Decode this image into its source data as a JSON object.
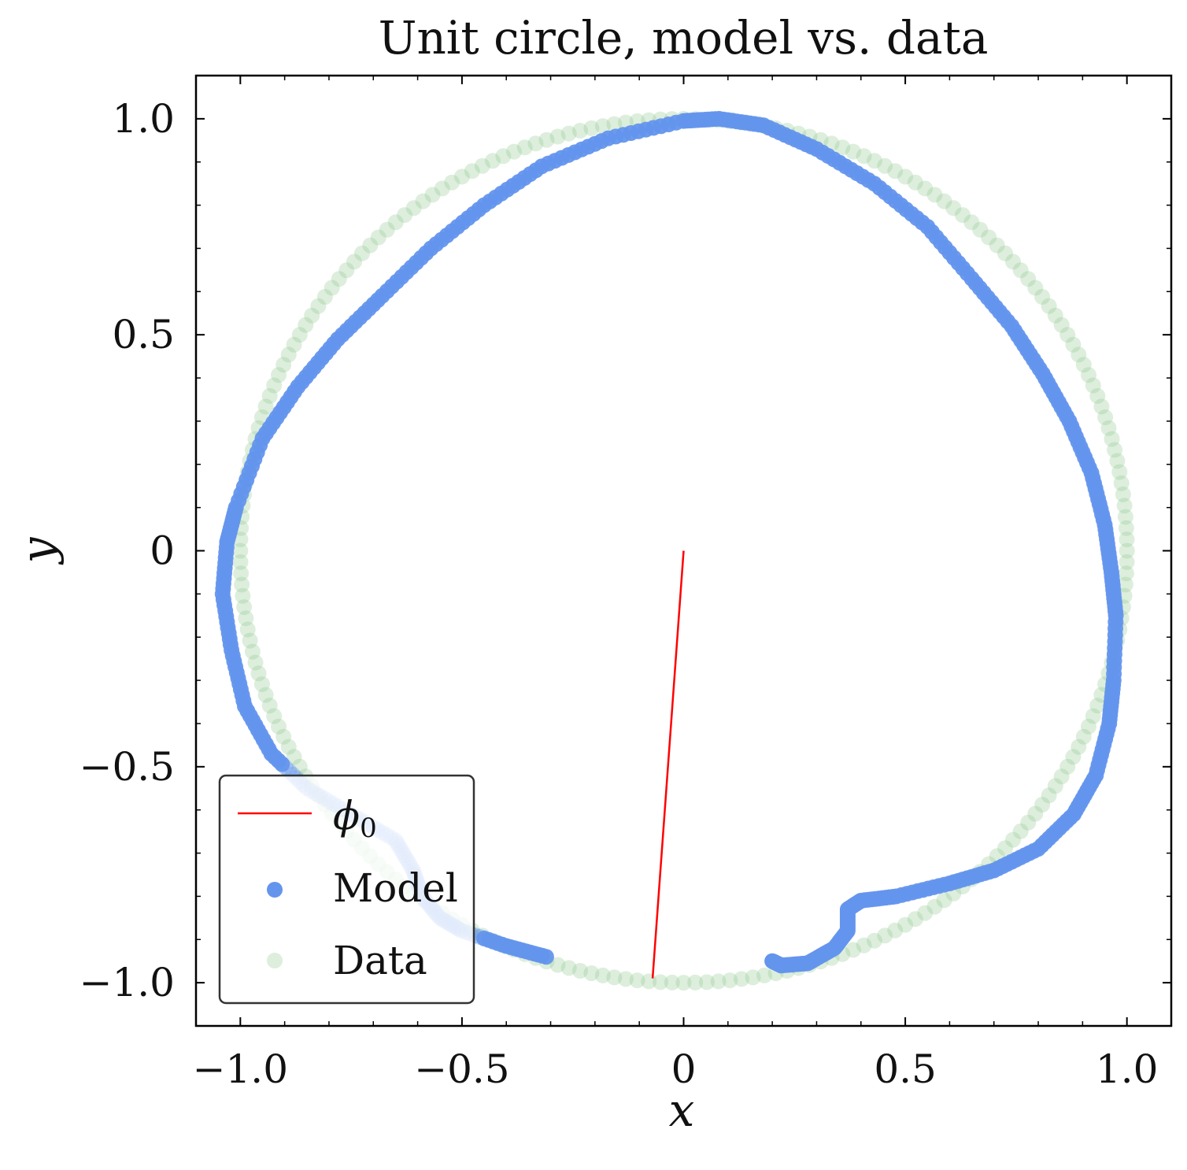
{
  "chart_data": {
    "type": "scatter",
    "title": "Unit circle, model vs. data",
    "xlabel": "x",
    "ylabel": "y",
    "xlim": [
      -1.1,
      1.1
    ],
    "ylim": [
      -1.1,
      1.1
    ],
    "xticks": [
      {
        "value": -1.0,
        "label": "−1.0"
      },
      {
        "value": -0.5,
        "label": "−0.5"
      },
      {
        "value": 0,
        "label": "0"
      },
      {
        "value": 0.5,
        "label": "0.5"
      },
      {
        "value": 1.0,
        "label": "1.0"
      }
    ],
    "yticks": [
      {
        "value": 1.0,
        "label": "1.0"
      },
      {
        "value": 0.5,
        "label": "0.5"
      },
      {
        "value": 0,
        "label": "0"
      },
      {
        "value": -0.5,
        "label": "−0.5"
      },
      {
        "value": -1.0,
        "label": "−1.0"
      }
    ],
    "grid": false,
    "legend": {
      "placement": "lower-left",
      "entries": [
        {
          "label": "ϕ",
          "subscript": "0",
          "kind": "line",
          "color": "#ff0000"
        },
        {
          "label": "Model",
          "kind": "marker",
          "color": "#6495ed"
        },
        {
          "label": "Data",
          "kind": "marker",
          "color": "#8fc78f"
        }
      ]
    },
    "series": [
      {
        "name": "Model",
        "kind": "scatter",
        "color": "#6495ed",
        "points": [
          [
            -0.31,
            -0.94
          ],
          [
            -0.4,
            -0.915
          ],
          [
            -0.5,
            -0.88
          ],
          [
            -0.55,
            -0.85
          ],
          [
            -0.59,
            -0.8
          ],
          [
            -0.61,
            -0.74
          ],
          [
            -0.65,
            -0.67
          ],
          [
            -0.75,
            -0.61
          ],
          [
            -0.85,
            -0.55
          ],
          [
            -0.93,
            -0.47
          ],
          [
            -0.99,
            -0.36
          ],
          [
            -1.02,
            -0.23
          ],
          [
            -1.04,
            -0.1
          ],
          [
            -1.03,
            0.02
          ],
          [
            -1.01,
            0.1
          ],
          [
            -0.95,
            0.26
          ],
          [
            -0.87,
            0.38
          ],
          [
            -0.78,
            0.49
          ],
          [
            -0.68,
            0.59
          ],
          [
            -0.57,
            0.7
          ],
          [
            -0.45,
            0.8
          ],
          [
            -0.32,
            0.89
          ],
          [
            -0.17,
            0.955
          ],
          [
            0.0,
            0.995
          ],
          [
            0.08,
            1.0
          ],
          [
            0.18,
            0.985
          ],
          [
            0.3,
            0.93
          ],
          [
            0.43,
            0.85
          ],
          [
            0.55,
            0.75
          ],
          [
            0.65,
            0.63
          ],
          [
            0.74,
            0.52
          ],
          [
            0.81,
            0.41
          ],
          [
            0.87,
            0.3
          ],
          [
            0.92,
            0.18
          ],
          [
            0.95,
            0.06
          ],
          [
            0.965,
            -0.05
          ],
          [
            0.975,
            -0.15
          ],
          [
            0.97,
            -0.3
          ],
          [
            0.96,
            -0.4
          ],
          [
            0.93,
            -0.52
          ],
          [
            0.88,
            -0.61
          ],
          [
            0.8,
            -0.69
          ],
          [
            0.7,
            -0.74
          ],
          [
            0.6,
            -0.77
          ],
          [
            0.48,
            -0.8
          ],
          [
            0.4,
            -0.81
          ],
          [
            0.37,
            -0.83
          ],
          [
            0.37,
            -0.88
          ],
          [
            0.34,
            -0.92
          ],
          [
            0.28,
            -0.955
          ],
          [
            0.22,
            -0.96
          ],
          [
            0.2,
            -0.95
          ]
        ]
      },
      {
        "name": "Data",
        "kind": "scatter",
        "color": "#8fc78f",
        "center": [
          0,
          0
        ],
        "radius": 1.0
      },
      {
        "name": "ϕ₀",
        "kind": "line",
        "color": "#ff0000",
        "points": [
          [
            0,
            0
          ],
          [
            -0.07,
            -0.99
          ]
        ]
      }
    ]
  }
}
